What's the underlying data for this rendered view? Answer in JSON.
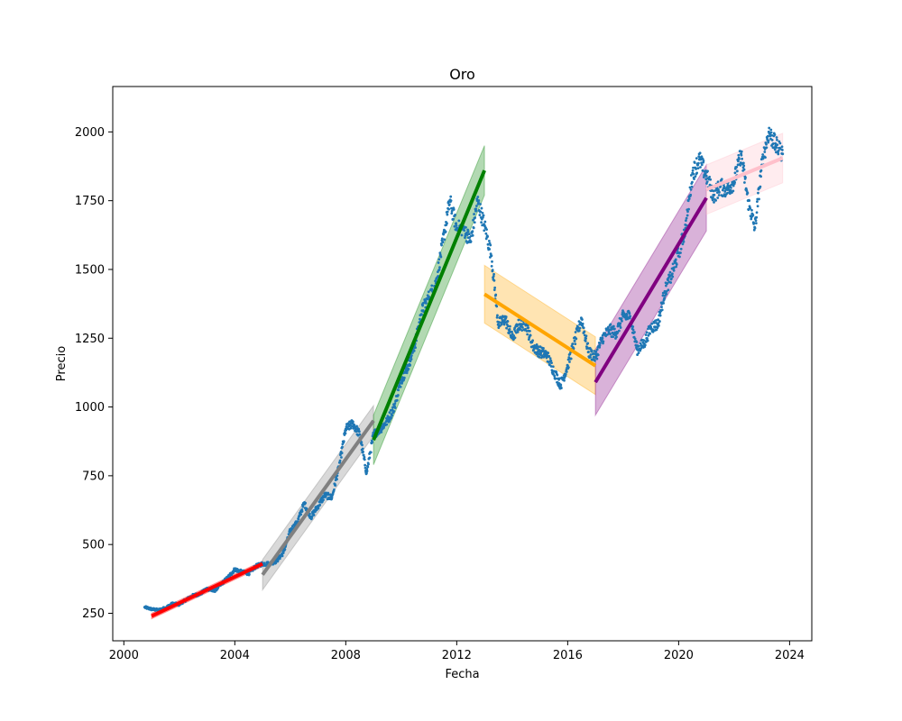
{
  "chart_data": {
    "type": "scatter",
    "title": "Oro",
    "xlabel": "Fecha",
    "ylabel": "Precio",
    "xlim": [
      1999.6,
      2024.8
    ],
    "ylim": [
      150,
      2165
    ],
    "xticks": [
      2000,
      2004,
      2008,
      2012,
      2016,
      2020,
      2024
    ],
    "xtick_labels": [
      "2000",
      "2004",
      "2008",
      "2012",
      "2016",
      "2020",
      "2024"
    ],
    "yticks": [
      250,
      500,
      750,
      1000,
      1250,
      1500,
      1750,
      2000
    ],
    "ytick_labels": [
      "250",
      "500",
      "750",
      "1000",
      "1250",
      "1500",
      "1750",
      "2000"
    ],
    "grid": false,
    "price_color": "#1f77b4",
    "price_series": {
      "x": [
        2000.75,
        2001.0,
        2001.25,
        2001.5,
        2001.75,
        2002.0,
        2002.25,
        2002.5,
        2002.75,
        2003.0,
        2003.25,
        2003.5,
        2003.75,
        2004.0,
        2004.25,
        2004.5,
        2004.75,
        2005.0,
        2005.25,
        2005.5,
        2005.75,
        2006.0,
        2006.25,
        2006.5,
        2006.75,
        2007.0,
        2007.25,
        2007.5,
        2007.75,
        2008.0,
        2008.25,
        2008.5,
        2008.75,
        2009.0,
        2009.25,
        2009.5,
        2009.75,
        2010.0,
        2010.25,
        2010.5,
        2010.75,
        2011.0,
        2011.25,
        2011.5,
        2011.75,
        2012.0,
        2012.25,
        2012.5,
        2012.75,
        2013.0,
        2013.25,
        2013.5,
        2013.75,
        2014.0,
        2014.25,
        2014.5,
        2014.75,
        2015.0,
        2015.25,
        2015.5,
        2015.75,
        2016.0,
        2016.25,
        2016.5,
        2016.75,
        2017.0,
        2017.25,
        2017.5,
        2017.75,
        2018.0,
        2018.25,
        2018.5,
        2018.75,
        2019.0,
        2019.25,
        2019.5,
        2019.75,
        2020.0,
        2020.25,
        2020.5,
        2020.75,
        2021.0,
        2021.25,
        2021.5,
        2021.75,
        2022.0,
        2022.25,
        2022.5,
        2022.75,
        2023.0,
        2023.25,
        2023.5,
        2023.75
      ],
      "y": [
        272,
        265,
        262,
        270,
        285,
        282,
        300,
        315,
        320,
        340,
        330,
        355,
        380,
        410,
        400,
        395,
        420,
        430,
        430,
        440,
        470,
        550,
        580,
        650,
        600,
        640,
        680,
        670,
        780,
        920,
        940,
        900,
        760,
        900,
        920,
        950,
        1000,
        1100,
        1150,
        1230,
        1350,
        1400,
        1450,
        1600,
        1750,
        1650,
        1650,
        1600,
        1750,
        1660,
        1550,
        1300,
        1320,
        1250,
        1300,
        1300,
        1220,
        1200,
        1190,
        1130,
        1080,
        1150,
        1240,
        1320,
        1200,
        1180,
        1250,
        1280,
        1270,
        1330,
        1330,
        1210,
        1230,
        1290,
        1300,
        1420,
        1480,
        1560,
        1650,
        1850,
        1900,
        1840,
        1770,
        1800,
        1790,
        1820,
        1920,
        1750,
        1650,
        1880,
        2000,
        1950,
        1920
      ]
    },
    "fit_segments": [
      {
        "x0": 2001.0,
        "x1": 2005.0,
        "y0": 240,
        "y1": 430,
        "band": 10,
        "color": "#ff0000"
      },
      {
        "x0": 2005.0,
        "x1": 2009.0,
        "y0": 390,
        "y1": 950,
        "band": 55,
        "color": "#808080"
      },
      {
        "x0": 2009.0,
        "x1": 2013.0,
        "y0": 880,
        "y1": 1860,
        "band": 90,
        "color": "#008000"
      },
      {
        "x0": 2013.0,
        "x1": 2017.0,
        "y0": 1410,
        "y1": 1150,
        "band": 105,
        "color": "#ffa500"
      },
      {
        "x0": 2017.0,
        "x1": 2021.0,
        "y0": 1090,
        "y1": 1760,
        "band": 120,
        "color": "#800080"
      },
      {
        "x0": 2021.0,
        "x1": 2023.75,
        "y0": 1790,
        "y1": 1905,
        "band": 90,
        "color": "#ffc0cb"
      }
    ]
  }
}
